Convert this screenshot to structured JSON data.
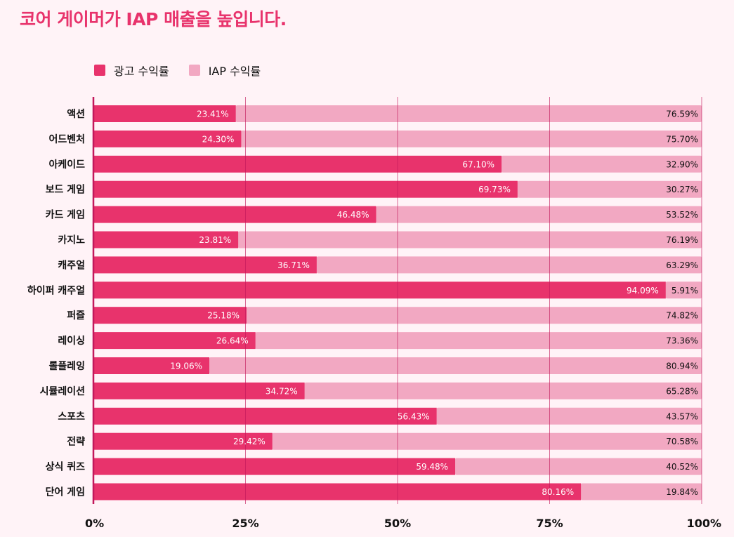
{
  "title": "코어 게이머가 IAP 매출을 높입니다.",
  "colors": {
    "background": "#fff3f7",
    "ad": "#e8336c",
    "iap": "#f2a8c2",
    "gridline": "#c2185b",
    "title": "#e8336c"
  },
  "chart_data": {
    "type": "bar",
    "orientation": "horizontal",
    "stacked": true,
    "title": "코어 게이머가 IAP 매출을 높입니다.",
    "legend_position": "top-left",
    "grid": true,
    "xlim": [
      0,
      100
    ],
    "xticks": [
      0,
      25,
      50,
      75,
      100
    ],
    "xtick_labels": [
      "0%",
      "25%",
      "50%",
      "75%",
      "100%"
    ],
    "categories": [
      "액션",
      "어드벤처",
      "아케이드",
      "보드 게임",
      "카드 게임",
      "카지노",
      "캐주얼",
      "하이퍼 캐주얼",
      "퍼즐",
      "레이싱",
      "롤플레잉",
      "시뮬레이션",
      "스포츠",
      "전략",
      "상식 퀴즈",
      "단어 게임"
    ],
    "series": [
      {
        "name": "광고 수익률",
        "color": "#e8336c",
        "values": [
          23.41,
          24.3,
          67.1,
          69.73,
          46.48,
          23.81,
          36.71,
          94.09,
          25.18,
          26.64,
          19.06,
          34.72,
          56.43,
          29.42,
          59.48,
          80.16
        ],
        "labels": [
          "23.41%",
          "24.30%",
          "67.10%",
          "69.73%",
          "46.48%",
          "23.81%",
          "36.71%",
          "94.09%",
          "25.18%",
          "26.64%",
          "19.06%",
          "34.72%",
          "56.43%",
          "29.42%",
          "59.48%",
          "80.16%"
        ]
      },
      {
        "name": "IAP 수익률",
        "color": "#f2a8c2",
        "values": [
          76.59,
          75.7,
          32.9,
          30.27,
          53.52,
          76.19,
          63.29,
          5.91,
          74.82,
          73.36,
          80.94,
          65.28,
          43.57,
          70.58,
          40.52,
          19.84
        ],
        "labels": [
          "76.59%",
          "75.70%",
          "32.90%",
          "30.27%",
          "53.52%",
          "76.19%",
          "63.29%",
          "5.91%",
          "74.82%",
          "73.36%",
          "80.94%",
          "65.28%",
          "43.57%",
          "70.58%",
          "40.52%",
          "19.84%"
        ]
      }
    ]
  }
}
